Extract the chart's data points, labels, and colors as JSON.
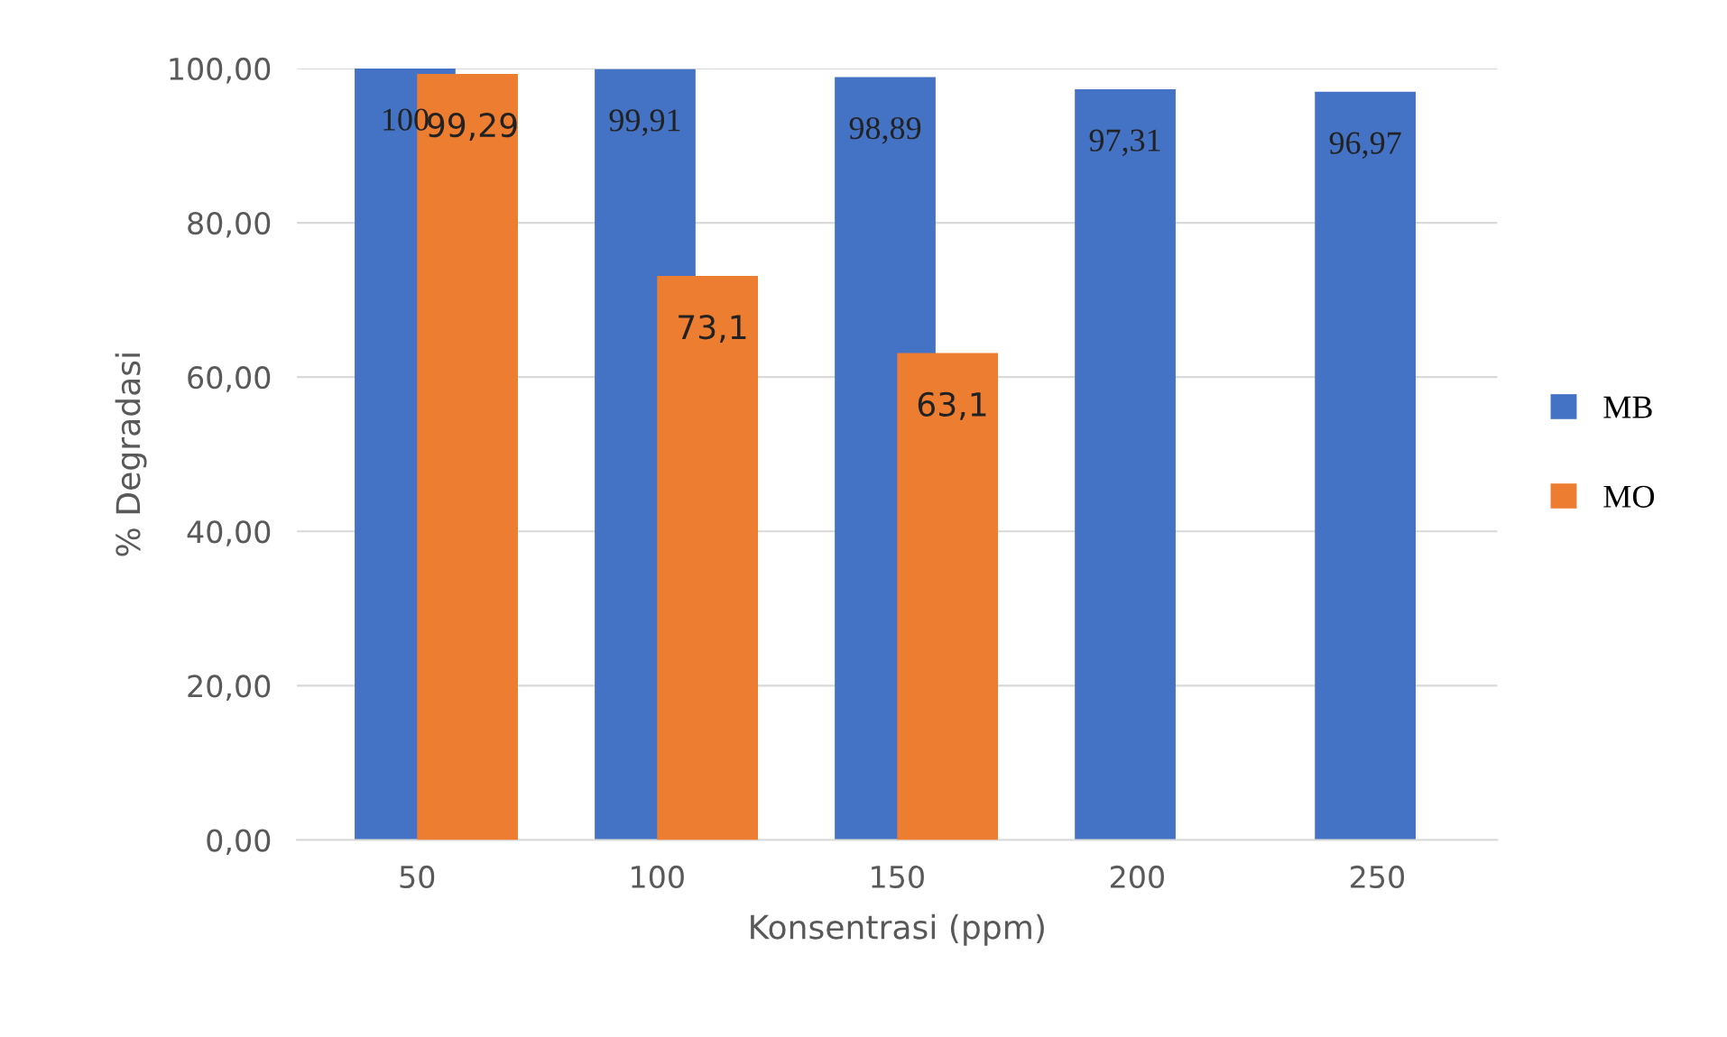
{
  "chart_data": {
    "type": "bar",
    "xlabel": "Konsentrasi (ppm)",
    "ylabel": "% Degradasi",
    "categories": [
      "50",
      "100",
      "150",
      "200",
      "250"
    ],
    "series": [
      {
        "name": "MB",
        "color": "#4472c4",
        "values": [
          100,
          99.91,
          98.89,
          97.31,
          96.97
        ],
        "value_labels": [
          "100",
          "99,91",
          "98,89",
          "97,31",
          "96,97"
        ]
      },
      {
        "name": "MO",
        "color": "#ed7d31",
        "values": [
          99.29,
          73.1,
          63.1,
          null,
          null
        ],
        "value_labels": [
          "99,29",
          "73,1",
          "63,1",
          null,
          null
        ]
      }
    ],
    "ylim": [
      0,
      100
    ],
    "yticks": [
      {
        "value": 0,
        "label": "0,00"
      },
      {
        "value": 20,
        "label": "20,00"
      },
      {
        "value": 40,
        "label": "40,00"
      },
      {
        "value": 60,
        "label": "60,00"
      },
      {
        "value": 80,
        "label": "80,00"
      },
      {
        "value": 100,
        "label": "100,00"
      }
    ],
    "grid": "y",
    "legend": "right"
  }
}
